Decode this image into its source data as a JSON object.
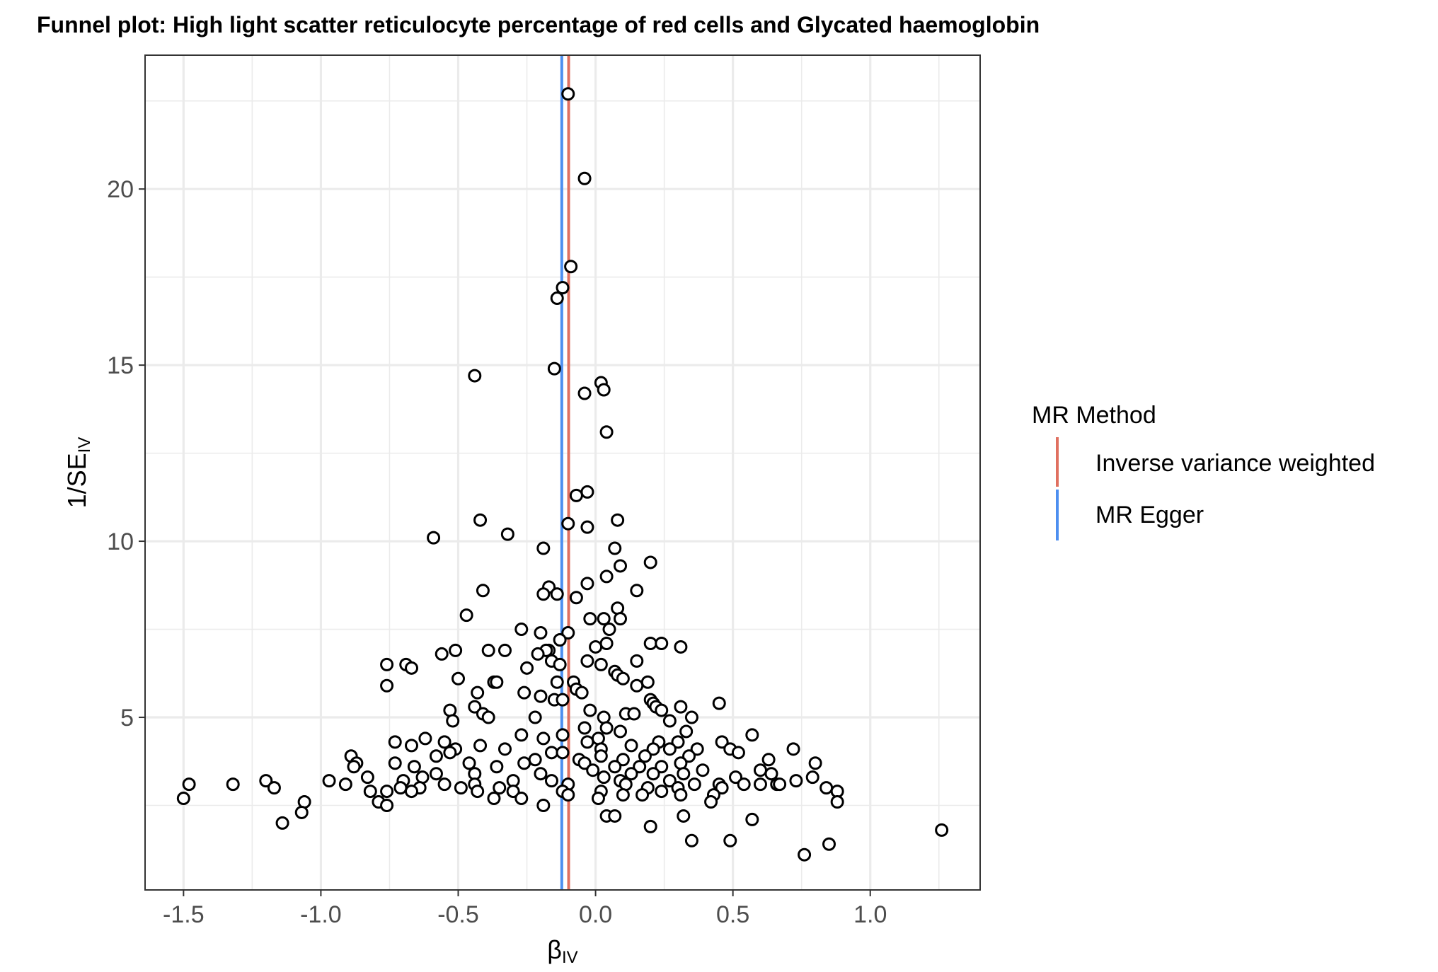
{
  "chart_data": {
    "type": "scatter",
    "title": "Funnel plot: High light scatter reticulocyte percentage of red cells and Glycated haemoglobin",
    "xlabel": {
      "main": "β",
      "sub": "IV"
    },
    "ylabel": {
      "main": "1/SE",
      "sub": "IV"
    },
    "xlim": [
      -1.64,
      1.4
    ],
    "ylim": [
      0.1,
      23.8
    ],
    "x_ticks": [
      -1.5,
      -1.0,
      -0.5,
      0.0,
      0.5,
      1.0
    ],
    "x_tick_labels": [
      "-1.5",
      "-1.0",
      "-0.5",
      "0.0",
      "0.5",
      "1.0"
    ],
    "y_ticks": [
      5,
      10,
      15,
      20
    ],
    "y_tick_labels": [
      "5",
      "10",
      "15",
      "20"
    ],
    "grid": true,
    "legend": {
      "title": "MR Method",
      "position": "right",
      "entries": [
        {
          "label": "Inverse variance weighted",
          "color": "#e07060"
        },
        {
          "label": "MR Egger",
          "color": "#4d8ff0"
        }
      ]
    },
    "vlines": [
      {
        "method": "Inverse variance weighted",
        "x": -0.098,
        "color": "#e07060"
      },
      {
        "method": "MR Egger",
        "x": -0.123,
        "color": "#4d8ff0"
      }
    ],
    "points": [
      [
        -0.1,
        22.7
      ],
      [
        -0.04,
        20.3
      ],
      [
        -0.09,
        17.8
      ],
      [
        -0.12,
        17.2
      ],
      [
        -0.14,
        16.9
      ],
      [
        -0.15,
        14.9
      ],
      [
        -0.44,
        14.7
      ],
      [
        0.02,
        14.5
      ],
      [
        0.03,
        14.3
      ],
      [
        -0.04,
        14.2
      ],
      [
        0.04,
        13.1
      ],
      [
        -0.03,
        11.4
      ],
      [
        -0.07,
        11.3
      ],
      [
        -0.42,
        10.6
      ],
      [
        0.08,
        10.6
      ],
      [
        -0.1,
        10.5
      ],
      [
        -0.03,
        10.4
      ],
      [
        -0.32,
        10.2
      ],
      [
        -0.59,
        10.1
      ],
      [
        0.07,
        9.8
      ],
      [
        -0.19,
        9.8
      ],
      [
        0.2,
        9.4
      ],
      [
        0.09,
        9.3
      ],
      [
        0.04,
        9.0
      ],
      [
        -0.03,
        8.8
      ],
      [
        -0.17,
        8.7
      ],
      [
        -0.41,
        8.6
      ],
      [
        0.15,
        8.6
      ],
      [
        -0.19,
        8.5
      ],
      [
        -0.14,
        8.5
      ],
      [
        -0.07,
        8.4
      ],
      [
        0.08,
        8.1
      ],
      [
        -0.47,
        7.9
      ],
      [
        0.03,
        7.8
      ],
      [
        0.09,
        7.8
      ],
      [
        -0.02,
        7.8
      ],
      [
        0.05,
        7.5
      ],
      [
        -0.27,
        7.5
      ],
      [
        -0.1,
        7.4
      ],
      [
        -0.2,
        7.4
      ],
      [
        -0.13,
        7.2
      ],
      [
        0.2,
        7.1
      ],
      [
        0.04,
        7.1
      ],
      [
        0.24,
        7.1
      ],
      [
        0.31,
        7.0
      ],
      [
        0.0,
        7.0
      ],
      [
        -0.17,
        6.9
      ],
      [
        -0.51,
        6.9
      ],
      [
        -0.33,
        6.9
      ],
      [
        -0.39,
        6.9
      ],
      [
        -0.18,
        6.9
      ],
      [
        -0.21,
        6.8
      ],
      [
        -0.56,
        6.8
      ],
      [
        -0.16,
        6.6
      ],
      [
        -0.03,
        6.6
      ],
      [
        0.15,
        6.6
      ],
      [
        -0.76,
        6.5
      ],
      [
        -0.69,
        6.5
      ],
      [
        -0.67,
        6.4
      ],
      [
        -0.13,
        6.5
      ],
      [
        0.02,
        6.5
      ],
      [
        -0.25,
        6.4
      ],
      [
        0.07,
        6.3
      ],
      [
        0.08,
        6.2
      ],
      [
        0.1,
        6.1
      ],
      [
        -0.5,
        6.1
      ],
      [
        -0.14,
        6.0
      ],
      [
        0.19,
        6.0
      ],
      [
        -0.37,
        6.0
      ],
      [
        -0.36,
        6.0
      ],
      [
        -0.08,
        6.0
      ],
      [
        -0.76,
        5.9
      ],
      [
        0.15,
        5.9
      ],
      [
        -0.07,
        5.8
      ],
      [
        -0.05,
        5.7
      ],
      [
        -0.26,
        5.7
      ],
      [
        -0.43,
        5.7
      ],
      [
        -0.2,
        5.6
      ],
      [
        -0.15,
        5.5
      ],
      [
        0.2,
        5.5
      ],
      [
        0.21,
        5.4
      ],
      [
        -0.12,
        5.5
      ],
      [
        0.45,
        5.4
      ],
      [
        -0.44,
        5.3
      ],
      [
        0.31,
        5.3
      ],
      [
        0.22,
        5.3
      ],
      [
        0.24,
        5.2
      ],
      [
        -0.02,
        5.2
      ],
      [
        -0.53,
        5.2
      ],
      [
        -0.41,
        5.1
      ],
      [
        0.11,
        5.1
      ],
      [
        0.14,
        5.1
      ],
      [
        0.35,
        5.0
      ],
      [
        -0.22,
        5.0
      ],
      [
        0.03,
        5.0
      ],
      [
        -0.39,
        5.0
      ],
      [
        -0.52,
        4.9
      ],
      [
        0.27,
        4.9
      ],
      [
        -0.04,
        4.7
      ],
      [
        0.04,
        4.7
      ],
      [
        0.09,
        4.6
      ],
      [
        0.33,
        4.6
      ],
      [
        -0.27,
        4.5
      ],
      [
        -0.12,
        4.5
      ],
      [
        0.57,
        4.5
      ],
      [
        -0.19,
        4.4
      ],
      [
        -0.62,
        4.4
      ],
      [
        0.01,
        4.4
      ],
      [
        0.3,
        4.3
      ],
      [
        -0.73,
        4.3
      ],
      [
        -0.55,
        4.3
      ],
      [
        0.46,
        4.3
      ],
      [
        0.23,
        4.3
      ],
      [
        -0.03,
        4.3
      ],
      [
        0.13,
        4.2
      ],
      [
        -0.67,
        4.2
      ],
      [
        -0.42,
        4.2
      ],
      [
        0.02,
        4.1
      ],
      [
        0.27,
        4.1
      ],
      [
        0.37,
        4.1
      ],
      [
        -0.51,
        4.1
      ],
      [
        -0.33,
        4.1
      ],
      [
        -0.16,
        4.0
      ],
      [
        0.49,
        4.1
      ],
      [
        -0.53,
        4.0
      ],
      [
        0.52,
        4.0
      ],
      [
        0.72,
        4.1
      ],
      [
        0.21,
        4.1
      ],
      [
        -0.12,
        4.0
      ],
      [
        -0.89,
        3.9
      ],
      [
        -0.58,
        3.9
      ],
      [
        0.02,
        3.9
      ],
      [
        0.18,
        3.9
      ],
      [
        0.34,
        3.9
      ],
      [
        -0.22,
        3.8
      ],
      [
        -0.06,
        3.8
      ],
      [
        -0.73,
        3.7
      ],
      [
        -0.87,
        3.7
      ],
      [
        0.63,
        3.8
      ],
      [
        0.1,
        3.8
      ],
      [
        0.31,
        3.7
      ],
      [
        -0.04,
        3.7
      ],
      [
        -0.26,
        3.7
      ],
      [
        -0.46,
        3.7
      ],
      [
        0.8,
        3.7
      ],
      [
        0.24,
        3.6
      ],
      [
        -0.36,
        3.6
      ],
      [
        -0.88,
        3.6
      ],
      [
        -0.66,
        3.6
      ],
      [
        0.16,
        3.6
      ],
      [
        0.07,
        3.6
      ],
      [
        0.6,
        3.5
      ],
      [
        -0.01,
        3.5
      ],
      [
        0.39,
        3.5
      ],
      [
        0.32,
        3.4
      ],
      [
        -0.63,
        3.3
      ],
      [
        -0.44,
        3.4
      ],
      [
        0.21,
        3.4
      ],
      [
        0.64,
        3.4
      ],
      [
        -0.2,
        3.4
      ],
      [
        0.13,
        3.4
      ],
      [
        -0.58,
        3.4
      ],
      [
        -0.83,
        3.3
      ],
      [
        0.03,
        3.3
      ],
      [
        -0.97,
        3.2
      ],
      [
        -1.2,
        3.2
      ],
      [
        -0.3,
        3.2
      ],
      [
        0.51,
        3.3
      ],
      [
        0.79,
        3.3
      ],
      [
        0.27,
        3.2
      ],
      [
        -0.7,
        3.2
      ],
      [
        -0.16,
        3.2
      ],
      [
        0.09,
        3.2
      ],
      [
        -0.1,
        3.1
      ],
      [
        0.36,
        3.1
      ],
      [
        0.11,
        3.1
      ],
      [
        0.73,
        3.2
      ],
      [
        0.6,
        3.1
      ],
      [
        0.66,
        3.1
      ],
      [
        0.67,
        3.1
      ],
      [
        0.54,
        3.1
      ],
      [
        -1.48,
        3.1
      ],
      [
        -1.32,
        3.1
      ],
      [
        -0.91,
        3.1
      ],
      [
        -0.55,
        3.1
      ],
      [
        -0.44,
        3.1
      ],
      [
        0.45,
        3.1
      ],
      [
        -0.35,
        3.0
      ],
      [
        0.19,
        3.0
      ],
      [
        0.84,
        3.0
      ],
      [
        -1.17,
        3.0
      ],
      [
        -0.71,
        3.0
      ],
      [
        -0.64,
        3.0
      ],
      [
        -0.49,
        3.0
      ],
      [
        0.3,
        3.0
      ],
      [
        0.46,
        3.0
      ],
      [
        0.88,
        2.9
      ],
      [
        -0.82,
        2.9
      ],
      [
        -0.76,
        2.9
      ],
      [
        -0.67,
        2.9
      ],
      [
        -0.3,
        2.9
      ],
      [
        -0.12,
        2.9
      ],
      [
        0.02,
        2.9
      ],
      [
        0.24,
        2.9
      ],
      [
        -0.43,
        2.9
      ],
      [
        -0.1,
        2.8
      ],
      [
        0.43,
        2.8
      ],
      [
        0.31,
        2.8
      ],
      [
        -0.37,
        2.7
      ],
      [
        0.1,
        2.8
      ],
      [
        0.17,
        2.8
      ],
      [
        0.01,
        2.7
      ],
      [
        -0.27,
        2.7
      ],
      [
        -1.5,
        2.7
      ],
      [
        -1.06,
        2.6
      ],
      [
        -0.79,
        2.6
      ],
      [
        0.42,
        2.6
      ],
      [
        0.88,
        2.6
      ],
      [
        -0.76,
        2.5
      ],
      [
        -0.19,
        2.5
      ],
      [
        -1.07,
        2.3
      ],
      [
        0.04,
        2.2
      ],
      [
        0.07,
        2.2
      ],
      [
        0.32,
        2.2
      ],
      [
        0.57,
        2.1
      ],
      [
        -1.14,
        2.0
      ],
      [
        0.2,
        1.9
      ],
      [
        1.26,
        1.8
      ],
      [
        0.35,
        1.5
      ],
      [
        0.49,
        1.5
      ],
      [
        0.85,
        1.4
      ],
      [
        0.76,
        1.1
      ]
    ]
  }
}
